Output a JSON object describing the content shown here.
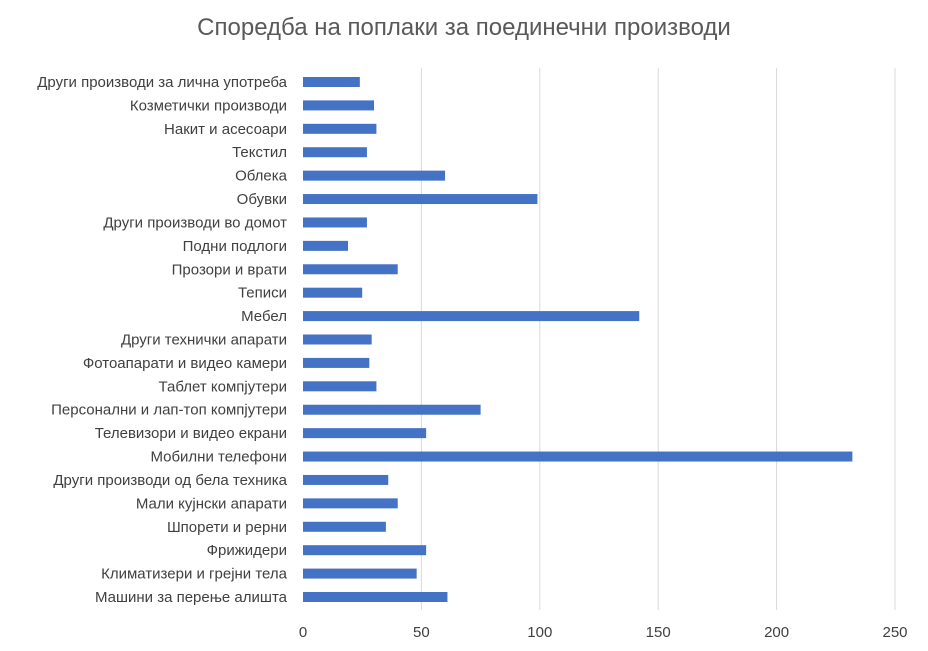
{
  "chart_data": {
    "type": "bar",
    "orientation": "horizontal",
    "title": "Споредба на поплаки за поединечни производи",
    "categories": [
      "Други производи за лична употреба",
      "Козметички производи",
      "Накит и асесоари",
      "Текстил",
      "Облека",
      "Обувки",
      "Други производи во домот",
      "Подни подлоги",
      "Прозори и врати",
      "Теписи",
      "Мебел",
      "Други технички апарати",
      "Фотоапарати и видео камери",
      "Таблет компјутери",
      "Персонални и лап-топ компјутери",
      "Телевизори и видео екрани",
      "Мобилни телефони",
      "Други производи од бела техника",
      "Мали кујнски апарати",
      "Шпорети и рерни",
      "Фрижидери",
      "Климатизери и грејни тела",
      "Машини за перење алишта"
    ],
    "values": [
      24,
      30,
      31,
      27,
      60,
      99,
      27,
      19,
      40,
      25,
      142,
      29,
      28,
      31,
      75,
      52,
      232,
      36,
      40,
      35,
      52,
      48,
      61
    ],
    "xlim": [
      0,
      250
    ],
    "xticks": [
      0,
      50,
      100,
      150,
      200,
      250
    ],
    "grid": "vertical",
    "bar_color": "#4472c4"
  }
}
